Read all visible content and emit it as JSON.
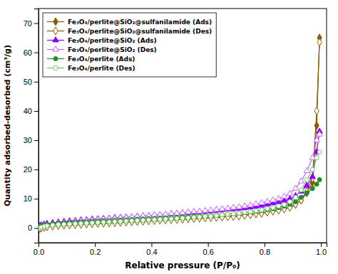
{
  "chart_data": {
    "type": "line",
    "title": "",
    "x_label": "Relative pressure (P/P₀)",
    "y_label": "Quantity adsorbed-desorbed (cm³/g)",
    "xlim": [
      0.0,
      1.02
    ],
    "ylim": [
      -5,
      75
    ],
    "xticks": [
      {
        "value": 0.0,
        "label": "0.0"
      },
      0.2,
      0.4,
      0.6,
      0.8,
      {
        "value": 1.0,
        "label": "1.0"
      }
    ],
    "yticks": [
      0,
      10,
      20,
      30,
      40,
      50,
      60,
      70
    ],
    "grid": false,
    "legend": "upper left",
    "x": [
      0.005,
      0.01,
      0.02,
      0.03,
      0.05,
      0.07,
      0.09,
      0.11,
      0.13,
      0.15,
      0.17,
      0.19,
      0.21,
      0.23,
      0.25,
      0.27,
      0.29,
      0.31,
      0.33,
      0.35,
      0.37,
      0.39,
      0.41,
      0.43,
      0.45,
      0.47,
      0.49,
      0.51,
      0.53,
      0.55,
      0.57,
      0.59,
      0.61,
      0.63,
      0.65,
      0.67,
      0.69,
      0.71,
      0.73,
      0.75,
      0.77,
      0.79,
      0.81,
      0.83,
      0.85,
      0.87,
      0.89,
      0.91,
      0.93,
      0.95,
      0.97,
      0.985,
      0.995
    ],
    "series": [
      {
        "name": "Fe₃O₄/perlite@SiO₂@sulfanilamide (Ads)",
        "color": "#8B5A00",
        "marker": "diamond",
        "values": [
          0.1,
          0.3,
          0.5,
          0.6,
          0.8,
          1.0,
          1.1,
          1.2,
          1.3,
          1.4,
          1.5,
          1.6,
          1.7,
          1.8,
          1.9,
          2.0,
          2.1,
          2.2,
          2.3,
          2.4,
          2.5,
          2.6,
          2.7,
          2.8,
          2.9,
          3.0,
          3.1,
          3.2,
          3.3,
          3.4,
          3.5,
          3.6,
          3.7,
          3.8,
          3.9,
          4.0,
          4.1,
          4.3,
          4.5,
          4.7,
          4.9,
          5.2,
          5.5,
          5.8,
          6.2,
          6.6,
          7.2,
          8.0,
          9.5,
          12.0,
          15.5,
          35.0,
          65.0
        ]
      },
      {
        "name": "Fe₃O₄/perlite@SiO₂@sulfanilamide (Des)",
        "color": "#8B5A00",
        "marker": "diamond-open",
        "values": [
          -0.2,
          0.0,
          0.2,
          0.4,
          0.6,
          0.8,
          0.9,
          1.0,
          1.1,
          1.2,
          1.3,
          1.4,
          1.5,
          1.6,
          1.7,
          1.8,
          1.9,
          2.0,
          2.1,
          2.2,
          2.3,
          2.4,
          2.5,
          2.6,
          2.7,
          2.8,
          2.9,
          3.0,
          3.1,
          3.2,
          3.3,
          3.4,
          3.5,
          3.6,
          3.7,
          3.8,
          3.9,
          4.1,
          4.3,
          4.5,
          4.8,
          5.0,
          5.4,
          5.7,
          6.0,
          6.5,
          7.0,
          8.0,
          9.5,
          12.5,
          17.0,
          40.0,
          63.5
        ]
      },
      {
        "name": "Fe₃O₄/perlite@SiO₂ (Ads)",
        "color": "#8B00FF",
        "marker": "triangle",
        "values": [
          0.8,
          1.0,
          1.3,
          1.5,
          1.8,
          2.0,
          2.2,
          2.4,
          2.5,
          2.7,
          2.8,
          3.0,
          3.1,
          3.2,
          3.3,
          3.5,
          3.6,
          3.7,
          3.8,
          4.0,
          4.1,
          4.2,
          4.3,
          4.5,
          4.6,
          4.8,
          4.9,
          5.0,
          5.2,
          5.3,
          5.5,
          5.6,
          5.8,
          6.0,
          6.2,
          6.4,
          6.5,
          6.7,
          6.9,
          7.1,
          7.4,
          7.7,
          8.1,
          8.5,
          8.9,
          9.4,
          10.0,
          11.0,
          12.5,
          14.5,
          17.5,
          26.0,
          33.0
        ]
      },
      {
        "name": "Fe₃O₄/perlite@SiO₂ (Des)",
        "color": "#CC66FF",
        "marker": "triangle-open",
        "values": [
          0.3,
          0.5,
          0.8,
          1.0,
          1.3,
          1.6,
          1.8,
          2.0,
          2.2,
          2.4,
          2.6,
          2.7,
          2.9,
          3.0,
          3.2,
          3.3,
          3.5,
          3.6,
          3.8,
          3.9,
          4.1,
          4.2,
          4.4,
          4.5,
          4.7,
          4.9,
          5.0,
          5.2,
          5.4,
          5.6,
          5.7,
          5.9,
          6.1,
          6.3,
          6.5,
          6.7,
          7.0,
          7.2,
          7.5,
          7.8,
          8.2,
          8.6,
          9.0,
          9.5,
          10.0,
          10.8,
          11.8,
          13.5,
          16.0,
          19.5,
          24.0,
          30.0,
          32.0
        ]
      },
      {
        "name": "Fe₃O₄/perlite (Ads)",
        "color": "#228B22",
        "marker": "circle",
        "values": [
          0.5,
          0.8,
          1.0,
          1.2,
          1.4,
          1.6,
          1.7,
          1.8,
          1.9,
          2.0,
          2.1,
          2.2,
          2.3,
          2.4,
          2.5,
          2.6,
          2.7,
          2.8,
          2.9,
          3.0,
          3.1,
          3.2,
          3.3,
          3.4,
          3.5,
          3.6,
          3.7,
          3.8,
          3.9,
          4.0,
          4.1,
          4.2,
          4.3,
          4.4,
          4.6,
          4.7,
          4.9,
          5.1,
          5.3,
          5.5,
          5.7,
          6.0,
          6.3,
          6.6,
          7.0,
          7.5,
          8.2,
          9.0,
          10.5,
          12.0,
          13.5,
          15.0,
          16.5
        ]
      },
      {
        "name": "Fe₃O₄/perlite (Des)",
        "color": "#66CC66",
        "marker": "circle-open",
        "values": [
          0.1,
          0.3,
          0.6,
          0.8,
          1.0,
          1.2,
          1.3,
          1.4,
          1.5,
          1.6,
          1.7,
          1.8,
          1.9,
          2.0,
          2.1,
          2.2,
          2.3,
          2.4,
          2.5,
          2.6,
          2.7,
          2.8,
          2.9,
          3.0,
          3.1,
          3.2,
          3.3,
          3.4,
          3.5,
          3.7,
          3.8,
          4.0,
          4.1,
          4.3,
          4.5,
          4.7,
          4.9,
          5.1,
          5.4,
          5.6,
          5.9,
          6.2,
          6.6,
          7.0,
          7.5,
          8.0,
          9.0,
          10.5,
          13.0,
          16.5,
          20.0,
          24.0,
          26.0
        ]
      }
    ]
  }
}
